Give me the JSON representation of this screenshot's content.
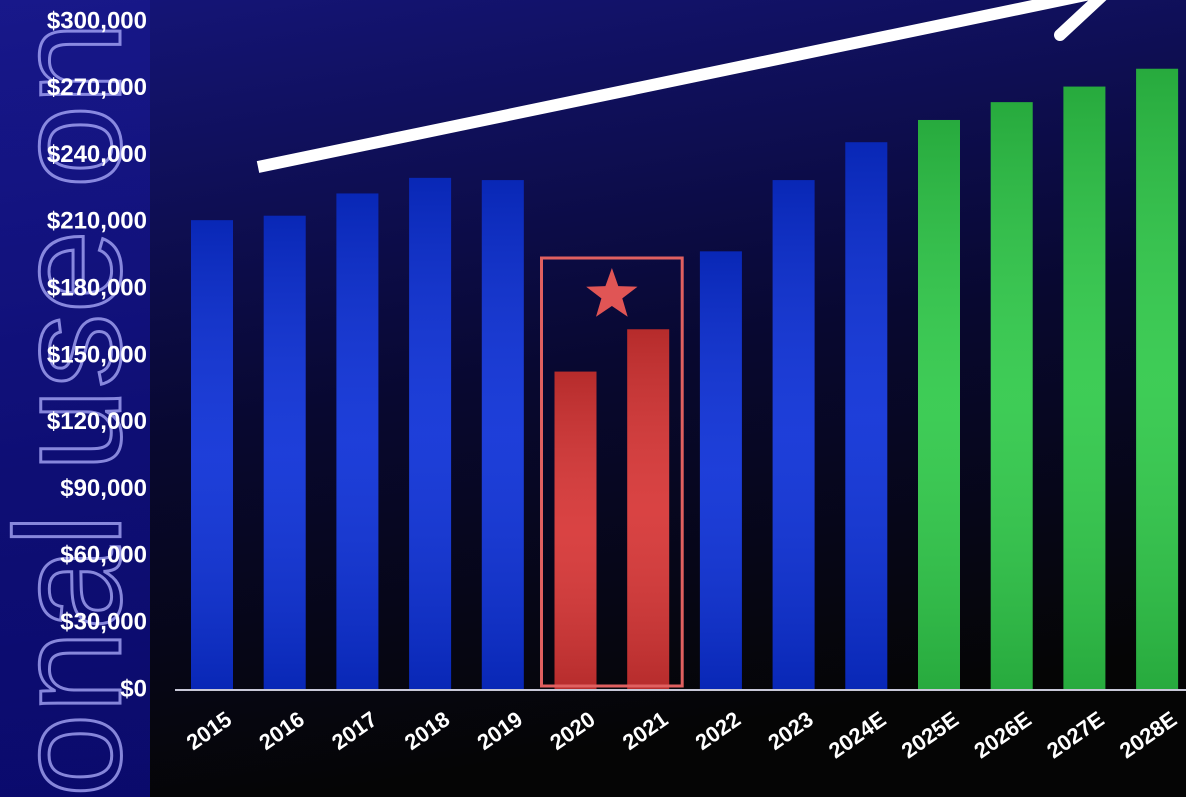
{
  "chart_data": {
    "type": "bar",
    "watermark": "onal use on",
    "categories": [
      "2015",
      "2016",
      "2017",
      "2018",
      "2019",
      "2020",
      "2021",
      "2022",
      "2023",
      "2024E",
      "2025E",
      "2026E",
      "2027E",
      "2028E"
    ],
    "values": [
      211000,
      213000,
      223000,
      230000,
      229000,
      143000,
      162000,
      197000,
      229000,
      246000,
      256000,
      264000,
      271000,
      279000
    ],
    "colors": [
      "#0a2ed6",
      "#0a2ed6",
      "#0a2ed6",
      "#0a2ed6",
      "#0a2ed6",
      "#d63333",
      "#d63333",
      "#0a2ed6",
      "#0a2ed6",
      "#0a2ed6",
      "#2ec848",
      "#2ec848",
      "#2ec848",
      "#2ec848"
    ],
    "ylim": [
      0,
      300000
    ],
    "yticks": [
      {
        "value": 0,
        "label": "$0"
      },
      {
        "value": 30000,
        "label": "$30,000"
      },
      {
        "value": 60000,
        "label": "$60,000"
      },
      {
        "value": 90000,
        "label": "$90,000"
      },
      {
        "value": 120000,
        "label": "$120,000"
      },
      {
        "value": 150000,
        "label": "$150,000"
      },
      {
        "value": 180000,
        "label": "$180,000"
      },
      {
        "value": 210000,
        "label": "$210,000"
      },
      {
        "value": 240000,
        "label": "$240,000"
      },
      {
        "value": 270000,
        "label": "$270,000"
      },
      {
        "value": 300000,
        "label": "$300,000"
      }
    ],
    "grid": false
  }
}
